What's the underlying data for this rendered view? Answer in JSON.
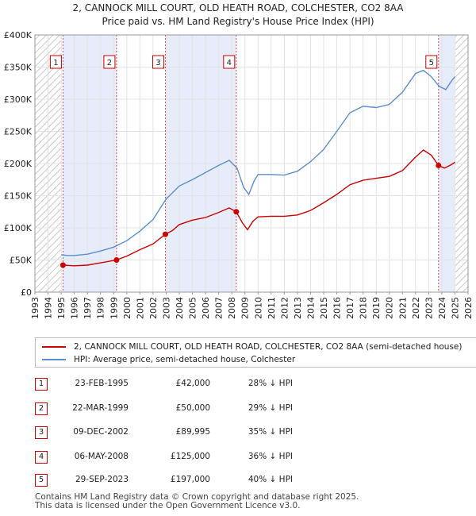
{
  "title": {
    "line1": "2, CANNOCK MILL COURT, OLD HEATH ROAD, COLCHESTER, CO2 8AA",
    "line2": "Price paid vs. HM Land Registry's House Price Index (HPI)"
  },
  "chart_data": {
    "type": "line",
    "title": "2, CANNOCK MILL COURT, OLD HEATH ROAD, COLCHESTER, CO2 8AA — Price paid vs. HM Land Registry's House Price Index (HPI)",
    "xlim": [
      1993,
      2026
    ],
    "ylim": [
      0,
      400000
    ],
    "x_ticks": [
      "1993",
      "1994",
      "1995",
      "1996",
      "1997",
      "1998",
      "1999",
      "2000",
      "2001",
      "2002",
      "2003",
      "2004",
      "2005",
      "2006",
      "2007",
      "2008",
      "2009",
      "2010",
      "2011",
      "2012",
      "2013",
      "2014",
      "2015",
      "2016",
      "2017",
      "2018",
      "2019",
      "2020",
      "2021",
      "2022",
      "2023",
      "2024",
      "2025",
      "2026"
    ],
    "y_ticks": [
      {
        "value": 0,
        "label": "£0"
      },
      {
        "value": 50000,
        "label": "£50K"
      },
      {
        "value": 100000,
        "label": "£100K"
      },
      {
        "value": 150000,
        "label": "£150K"
      },
      {
        "value": 200000,
        "label": "£200K"
      },
      {
        "value": 250000,
        "label": "£250K"
      },
      {
        "value": 300000,
        "label": "£300K"
      },
      {
        "value": 350000,
        "label": "£350K"
      },
      {
        "value": 400000,
        "label": "£400K"
      }
    ],
    "hatched_regions": [
      [
        1993,
        1995.0
      ],
      [
        2025.0,
        2026
      ]
    ],
    "shaded_bands": [
      [
        1995.14,
        1999.22
      ],
      [
        2002.94,
        2008.34
      ],
      [
        2023.75,
        2025.0
      ]
    ],
    "series": [
      {
        "name": "2, CANNOCK MILL COURT, OLD HEATH ROAD, COLCHESTER, CO2 8AA (semi-detached house)",
        "color": "#cc0000",
        "points": [
          [
            1995.14,
            42000
          ],
          [
            1996.0,
            41000
          ],
          [
            1997.0,
            42000
          ],
          [
            1998.0,
            45500
          ],
          [
            1999.22,
            50000
          ],
          [
            2000.0,
            56000
          ],
          [
            2001.0,
            66000
          ],
          [
            2002.0,
            75000
          ],
          [
            2002.94,
            89995
          ],
          [
            2003.5,
            96000
          ],
          [
            2004.0,
            105000
          ],
          [
            2005.0,
            112000
          ],
          [
            2006.0,
            116000
          ],
          [
            2007.0,
            124000
          ],
          [
            2007.8,
            131000
          ],
          [
            2008.34,
            125000
          ],
          [
            2008.8,
            108000
          ],
          [
            2009.2,
            97000
          ],
          [
            2009.6,
            110000
          ],
          [
            2010.0,
            117000
          ],
          [
            2011.0,
            118000
          ],
          [
            2012.0,
            118000
          ],
          [
            2013.0,
            120000
          ],
          [
            2014.0,
            127000
          ],
          [
            2015.0,
            139000
          ],
          [
            2016.0,
            152000
          ],
          [
            2017.0,
            167000
          ],
          [
            2018.0,
            174000
          ],
          [
            2019.0,
            177000
          ],
          [
            2020.0,
            180000
          ],
          [
            2021.0,
            189000
          ],
          [
            2022.0,
            210000
          ],
          [
            2022.6,
            221000
          ],
          [
            2023.2,
            213000
          ],
          [
            2023.75,
            197000
          ],
          [
            2024.2,
            193000
          ],
          [
            2024.7,
            198000
          ],
          [
            2025.0,
            202000
          ]
        ]
      },
      {
        "name": "HPI: Average price, semi-detached house, Colchester",
        "color": "#5b8ecf",
        "points": [
          [
            1995.0,
            58000
          ],
          [
            1995.5,
            57000
          ],
          [
            1996.0,
            57000
          ],
          [
            1997.0,
            59000
          ],
          [
            1998.0,
            64000
          ],
          [
            1999.0,
            70000
          ],
          [
            2000.0,
            80000
          ],
          [
            2001.0,
            95000
          ],
          [
            2002.0,
            113000
          ],
          [
            2003.0,
            145000
          ],
          [
            2004.0,
            165000
          ],
          [
            2005.0,
            175000
          ],
          [
            2006.0,
            186000
          ],
          [
            2007.0,
            197000
          ],
          [
            2007.8,
            205000
          ],
          [
            2008.4,
            193000
          ],
          [
            2008.9,
            163000
          ],
          [
            2009.3,
            152000
          ],
          [
            2009.7,
            173000
          ],
          [
            2010.0,
            183000
          ],
          [
            2011.0,
            183000
          ],
          [
            2012.0,
            182000
          ],
          [
            2013.0,
            188000
          ],
          [
            2014.0,
            203000
          ],
          [
            2015.0,
            222000
          ],
          [
            2016.0,
            250000
          ],
          [
            2017.0,
            279000
          ],
          [
            2018.0,
            289000
          ],
          [
            2019.0,
            287000
          ],
          [
            2020.0,
            292000
          ],
          [
            2021.0,
            311000
          ],
          [
            2022.0,
            340000
          ],
          [
            2022.6,
            345000
          ],
          [
            2023.2,
            335000
          ],
          [
            2023.8,
            320000
          ],
          [
            2024.3,
            315000
          ],
          [
            2024.8,
            330000
          ],
          [
            2025.0,
            335000
          ]
        ]
      }
    ],
    "markers": [
      {
        "label": "1",
        "x": 1995.14,
        "y": 42000
      },
      {
        "label": "2",
        "x": 1999.22,
        "y": 50000
      },
      {
        "label": "3",
        "x": 2002.94,
        "y": 89995
      },
      {
        "label": "4",
        "x": 2008.34,
        "y": 125000
      },
      {
        "label": "5",
        "x": 2023.75,
        "y": 197000
      }
    ]
  },
  "legend": {
    "items": [
      {
        "label": "2, CANNOCK MILL COURT, OLD HEATH ROAD, COLCHESTER, CO2 8AA (semi-detached house)",
        "color": "#cc0000"
      },
      {
        "label": "HPI: Average price, semi-detached house, Colchester",
        "color": "#5b8ecf"
      }
    ]
  },
  "transactions": [
    {
      "num": "1",
      "date": "23-FEB-1995",
      "price": "£42,000",
      "hpi": "28% ↓ HPI"
    },
    {
      "num": "2",
      "date": "22-MAR-1999",
      "price": "£50,000",
      "hpi": "29% ↓ HPI"
    },
    {
      "num": "3",
      "date": "09-DEC-2002",
      "price": "£89,995",
      "hpi": "35% ↓ HPI"
    },
    {
      "num": "4",
      "date": "06-MAY-2008",
      "price": "£125,000",
      "hpi": "36% ↓ HPI"
    },
    {
      "num": "5",
      "date": "29-SEP-2023",
      "price": "£197,000",
      "hpi": "40% ↓ HPI"
    }
  ],
  "footer": {
    "line1": "Contains HM Land Registry data © Crown copyright and database right 2025.",
    "line2": "This data is licensed under the Open Government Licence v3.0."
  }
}
